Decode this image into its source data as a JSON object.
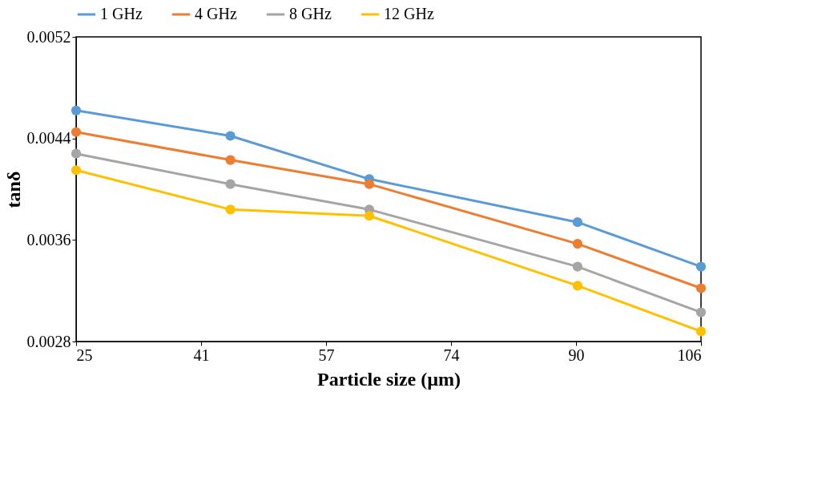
{
  "chart_data": {
    "type": "line",
    "xlabel": "Particle size (µm)",
    "ylabel": "tanδ",
    "x": [
      25,
      45,
      63,
      90,
      106
    ],
    "xlim": [
      25,
      106
    ],
    "xticks": [
      25,
      {
        "value": 41.2,
        "label": "41"
      },
      {
        "value": 57.4,
        "label": "57"
      },
      {
        "value": 73.6,
        "label": "74"
      },
      {
        "value": 89.8,
        "label": "90"
      },
      106
    ],
    "ylim": [
      0.0028,
      0.0052
    ],
    "yticks": [
      0.0028,
      0.0036,
      0.0044,
      0.0052
    ],
    "grid": false,
    "legend": "top",
    "marker": "circle",
    "line_style": "solid",
    "series": [
      {
        "name": "1 GHz",
        "color": "#5b9bd5",
        "values": [
          0.00462,
          0.00442,
          0.00408,
          0.00374,
          0.00339
        ]
      },
      {
        "name": "4 GHz",
        "color": "#ed7d31",
        "values": [
          0.00445,
          0.00423,
          0.00404,
          0.00357,
          0.00322
        ]
      },
      {
        "name": "8 GHz",
        "color": "#a5a5a5",
        "values": [
          0.00428,
          0.00404,
          0.00384,
          0.00339,
          0.00303
        ]
      },
      {
        "name": "12 GHz",
        "color": "#ffc000",
        "values": [
          0.00415,
          0.00384,
          0.00379,
          0.00324,
          0.00288
        ]
      }
    ]
  }
}
